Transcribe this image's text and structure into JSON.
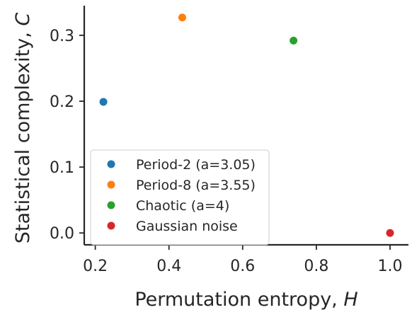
{
  "chart_data": {
    "type": "scatter",
    "xlabel": "Permutation entropy, ",
    "xlabel_var": "H",
    "ylabel": "Statistical complexity, ",
    "ylabel_var": "C",
    "xlim": [
      0.17,
      1.05
    ],
    "ylim": [
      -0.018,
      0.345
    ],
    "xticks": [
      {
        "value": 0.2,
        "label": "0.2"
      },
      {
        "value": 0.4,
        "label": "0.4"
      },
      {
        "value": 0.6,
        "label": "0.6"
      },
      {
        "value": 0.8,
        "label": "0.8"
      },
      {
        "value": 1.0,
        "label": "1.0"
      }
    ],
    "yticks": [
      {
        "value": 0.0,
        "label": "0.0"
      },
      {
        "value": 0.1,
        "label": "0.1"
      },
      {
        "value": 0.2,
        "label": "0.2"
      },
      {
        "value": 0.3,
        "label": "0.3"
      }
    ],
    "grid": false,
    "legend_position": "lower-left",
    "series": [
      {
        "name": "Period-2 (a=3.05)",
        "color": "#1f77b4",
        "x": [
          0.222
        ],
        "y": [
          0.199
        ]
      },
      {
        "name": "Period-8 (a=3.55)",
        "color": "#ff7f0e",
        "x": [
          0.436
        ],
        "y": [
          0.327
        ]
      },
      {
        "name": "Chaotic (a=4)",
        "color": "#2ca02c",
        "x": [
          0.738
        ],
        "y": [
          0.292
        ]
      },
      {
        "name": "Gaussian noise",
        "color": "#d62728",
        "x": [
          1.0
        ],
        "y": [
          0.0
        ]
      }
    ]
  }
}
